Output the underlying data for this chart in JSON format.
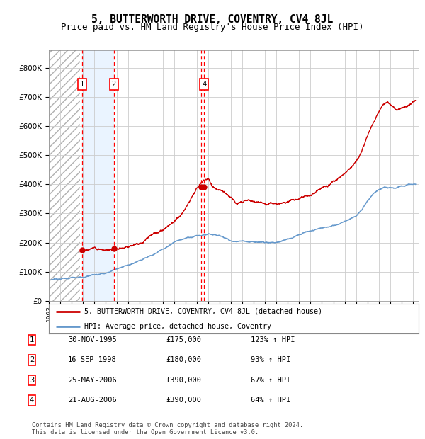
{
  "title": "5, BUTTERWORTH DRIVE, COVENTRY, CV4 8JL",
  "subtitle": "Price paid vs. HM Land Registry's House Price Index (HPI)",
  "title_fontsize": 10.5,
  "subtitle_fontsize": 9,
  "xlim_start": 1993.0,
  "xlim_end": 2025.5,
  "ylim_min": 0,
  "ylim_max": 860000,
  "yticks": [
    0,
    100000,
    200000,
    300000,
    400000,
    500000,
    600000,
    700000,
    800000
  ],
  "ytick_labels": [
    "£0",
    "£100K",
    "£200K",
    "£300K",
    "£400K",
    "£500K",
    "£600K",
    "£700K",
    "£800K"
  ],
  "xticks": [
    1993,
    1994,
    1995,
    1996,
    1997,
    1998,
    1999,
    2000,
    2001,
    2002,
    2003,
    2004,
    2005,
    2006,
    2007,
    2008,
    2009,
    2010,
    2011,
    2012,
    2013,
    2014,
    2015,
    2016,
    2017,
    2018,
    2019,
    2020,
    2021,
    2022,
    2023,
    2024,
    2025
  ],
  "hatch_region_start": 1993.0,
  "hatch_region_end": 1995.75,
  "highlight_region_start": 1995.92,
  "highlight_region_end": 1998.71,
  "red_line_color": "#cc0000",
  "blue_line_color": "#6699cc",
  "grid_color": "#cccccc",
  "sale_events": [
    {
      "year": 1995.92,
      "price": 175000,
      "label": "1"
    },
    {
      "year": 1998.71,
      "price": 180000,
      "label": "2"
    },
    {
      "year": 2006.39,
      "price": 390000,
      "label": "3"
    },
    {
      "year": 2006.64,
      "price": 390000,
      "label": "4"
    }
  ],
  "show_labels_in_chart": [
    "1",
    "2",
    "4"
  ],
  "legend_line1": "5, BUTTERWORTH DRIVE, COVENTRY, CV4 8JL (detached house)",
  "legend_line2": "HPI: Average price, detached house, Coventry",
  "table_data": [
    {
      "num": "1",
      "date": "30-NOV-1995",
      "price": "£175,000",
      "hpi": "123% ↑ HPI"
    },
    {
      "num": "2",
      "date": "16-SEP-1998",
      "price": "£180,000",
      "hpi": "93% ↑ HPI"
    },
    {
      "num": "3",
      "date": "25-MAY-2006",
      "price": "£390,000",
      "hpi": "67% ↑ HPI"
    },
    {
      "num": "4",
      "date": "21-AUG-2006",
      "price": "£390,000",
      "hpi": "64% ↑ HPI"
    }
  ],
  "footer_text": "Contains HM Land Registry data © Crown copyright and database right 2024.\nThis data is licensed under the Open Government Licence v3.0.",
  "background_color": "#ffffff"
}
